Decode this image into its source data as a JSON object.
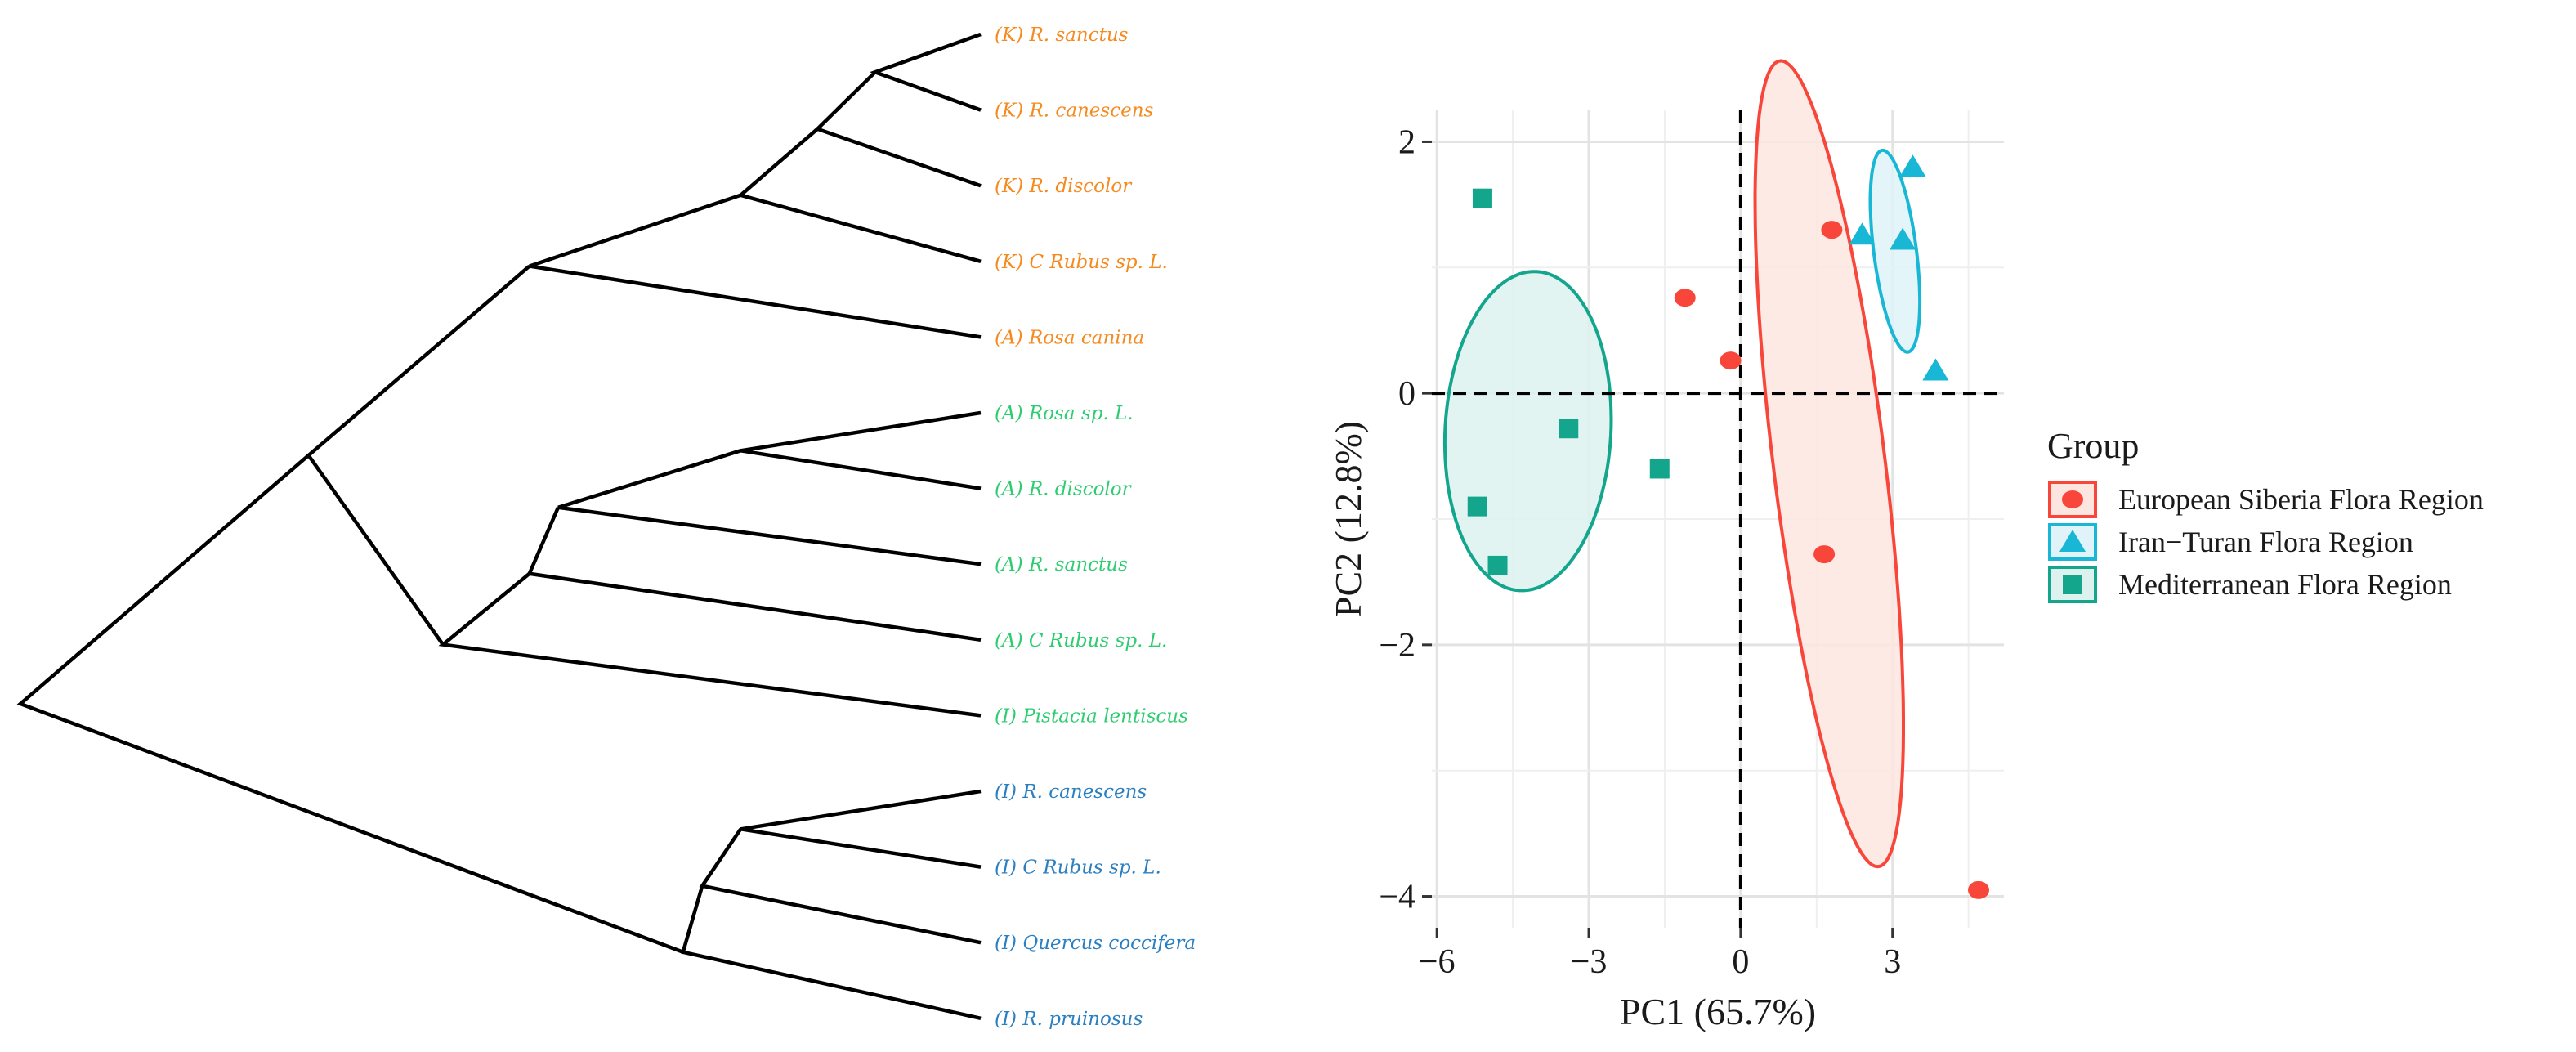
{
  "chart_data": [
    {
      "type": "dendrogram",
      "leaves": [
        {
          "label": "(K) R. sanctus",
          "group": "K"
        },
        {
          "label": "(K) R. canescens",
          "group": "K"
        },
        {
          "label": "(K) R. discolor",
          "group": "K"
        },
        {
          "label": "(K) C Rubus sp. L.",
          "group": "K"
        },
        {
          "label": "(A) Rosa canina",
          "group": "K"
        },
        {
          "label": "(A) Rosa sp. L.",
          "group": "A"
        },
        {
          "label": "(A) R. discolor",
          "group": "A"
        },
        {
          "label": "(A) R. sanctus",
          "group": "A"
        },
        {
          "label": "(A) C Rubus sp. L.",
          "group": "A"
        },
        {
          "label": "(I) Pistacia  lentiscus",
          "group": "A"
        },
        {
          "label": "(I) R. canescens",
          "group": "I"
        },
        {
          "label": "(I) C Rubus sp. L.",
          "group": "I"
        },
        {
          "label": "(I) Quercus coccifera",
          "group": "I"
        },
        {
          "label": "(I) R. pruinosus",
          "group": "I"
        }
      ],
      "merges": [
        [
          0,
          1,
          0.11
        ],
        [
          -1,
          2,
          0.17
        ],
        [
          -2,
          3,
          0.25
        ],
        [
          -3,
          4,
          0.47
        ],
        [
          5,
          6,
          0.25
        ],
        [
          -5,
          7,
          0.44
        ],
        [
          -6,
          8,
          0.47
        ],
        [
          -7,
          9,
          0.56
        ],
        [
          -4,
          -8,
          0.7
        ],
        [
          10,
          11,
          0.25
        ],
        [
          -10,
          12,
          0.29
        ],
        [
          -11,
          13,
          0.31
        ],
        [
          -9,
          -12,
          1.0
        ]
      ],
      "group_colors": {
        "K": "#f58a1f",
        "A": "#2ecc71",
        "I": "#2a7fc1"
      },
      "line_color": "#000000"
    },
    {
      "type": "scatter",
      "xlabel": "PC1 (65.7%)",
      "ylabel": "PC2 (12.8%)",
      "xlim": [
        -6.1,
        5.2
      ],
      "ylim": [
        -4.25,
        2.25
      ],
      "xticks": [
        -6,
        -3,
        0,
        3
      ],
      "yticks": [
        2,
        0,
        -2,
        -4
      ],
      "xtick_labels": [
        "−6",
        "−3",
        "0",
        "3"
      ],
      "ytick_labels": [
        "2",
        "0",
        "−2",
        "−4"
      ],
      "grid": true,
      "reference_lines": {
        "x": 0,
        "y": 0,
        "style": "dashed"
      },
      "legend": {
        "title": "Group",
        "position": "right"
      },
      "series": [
        {
          "name": "European Siberia Flora Region",
          "marker": "circle",
          "color": "#f8463a",
          "fill": "#fde6df",
          "points": [
            [
              1.8,
              1.3
            ],
            [
              -1.1,
              0.76
            ],
            [
              -0.2,
              0.26
            ],
            [
              1.65,
              -1.28
            ],
            [
              4.7,
              -3.95
            ]
          ],
          "ellipse": {
            "center": [
              1.75,
              -0.56
            ],
            "rx": 3.36,
            "ry": 1.06,
            "angle_deg": -71.5
          }
        },
        {
          "name": "Iran−Turan Flora Region",
          "marker": "triangle",
          "color": "#18b7d6",
          "fill": "#dff3f8",
          "points": [
            [
              3.4,
              1.8
            ],
            [
              2.4,
              1.26
            ],
            [
              3.2,
              1.22
            ],
            [
              3.85,
              0.18
            ]
          ],
          "ellipse": {
            "center": [
              3.05,
              1.13
            ],
            "rx": 0.85,
            "ry": 0.4,
            "angle_deg": -68
          }
        },
        {
          "name": "Mediterranean Flora Region",
          "marker": "square",
          "color": "#13a68d",
          "fill": "#ddf2ee",
          "points": [
            [
              -5.1,
              1.55
            ],
            [
              -3.4,
              -0.28
            ],
            [
              -1.6,
              -0.6
            ],
            [
              -5.2,
              -0.9
            ],
            [
              -4.8,
              -1.37
            ]
          ],
          "ellipse": {
            "center": [
              -4.2,
              -0.3
            ],
            "rx": 1.26,
            "ry": 1.65,
            "angle_deg": -82
          }
        }
      ]
    }
  ]
}
